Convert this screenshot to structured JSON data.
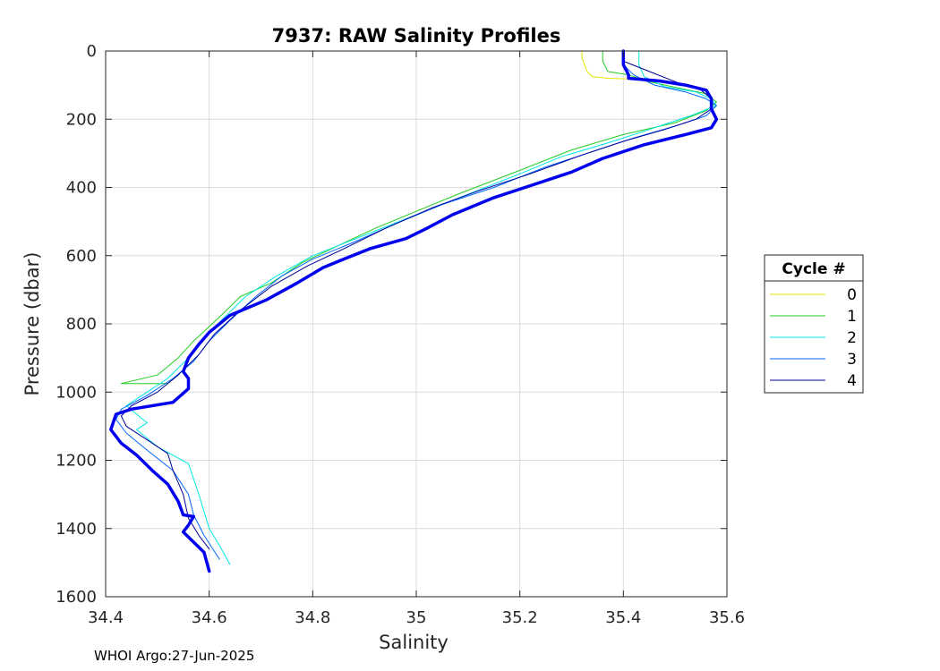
{
  "chart_data": {
    "type": "line",
    "title": "7937: RAW Salinity Profiles",
    "xlabel": "Salinity",
    "ylabel": "Pressure (dbar)",
    "xlim": [
      34.4,
      35.6
    ],
    "ylim": [
      0,
      1600
    ],
    "y_reversed": true,
    "grid": true,
    "xticks": [
      "34.4",
      "34.6",
      "34.8",
      "35",
      "35.2",
      "35.4",
      "35.6"
    ],
    "yticks": [
      "0",
      "200",
      "400",
      "600",
      "800",
      "1000",
      "1200",
      "1400",
      "1600"
    ],
    "legend": {
      "title": "Cycle #",
      "position": "outside-right"
    },
    "series": [
      {
        "name": "0",
        "color": "#e6e600",
        "width": 1,
        "points": [
          [
            35.32,
            0
          ],
          [
            35.32,
            20
          ],
          [
            35.33,
            60
          ],
          [
            35.34,
            75
          ],
          [
            35.37,
            80
          ],
          [
            35.41,
            82
          ]
        ]
      },
      {
        "name": "1",
        "color": "#22cc22",
        "width": 1,
        "points": [
          [
            35.36,
            0
          ],
          [
            35.36,
            30
          ],
          [
            35.37,
            60
          ],
          [
            35.41,
            70
          ],
          [
            35.45,
            90
          ],
          [
            35.51,
            110
          ],
          [
            35.56,
            125
          ],
          [
            35.58,
            150
          ],
          [
            35.56,
            175
          ],
          [
            35.5,
            210
          ],
          [
            35.4,
            245
          ],
          [
            35.3,
            290
          ],
          [
            35.2,
            350
          ],
          [
            35.08,
            420
          ],
          [
            35.0,
            470
          ],
          [
            34.92,
            520
          ],
          [
            34.85,
            570
          ],
          [
            34.78,
            620
          ],
          [
            34.72,
            680
          ],
          [
            34.66,
            720
          ],
          [
            34.62,
            780
          ],
          [
            34.57,
            850
          ],
          [
            34.54,
            900
          ],
          [
            34.5,
            950
          ],
          [
            34.43,
            975
          ],
          [
            34.52,
            975
          ],
          [
            34.54,
            950
          ]
        ]
      },
      {
        "name": "2",
        "color": "#00e6e6",
        "width": 1,
        "points": [
          [
            35.43,
            0
          ],
          [
            35.43,
            40
          ],
          [
            35.44,
            75
          ],
          [
            35.48,
            105
          ],
          [
            35.54,
            120
          ],
          [
            35.57,
            140
          ],
          [
            35.58,
            160
          ],
          [
            35.53,
            190
          ],
          [
            35.46,
            225
          ],
          [
            35.38,
            265
          ],
          [
            35.28,
            310
          ],
          [
            35.2,
            360
          ],
          [
            35.1,
            420
          ],
          [
            35.0,
            480
          ],
          [
            34.9,
            540
          ],
          [
            34.8,
            600
          ],
          [
            34.73,
            660
          ],
          [
            34.67,
            720
          ],
          [
            34.63,
            780
          ],
          [
            34.59,
            840
          ],
          [
            34.56,
            900
          ],
          [
            34.52,
            960
          ],
          [
            34.47,
            1010
          ],
          [
            34.44,
            1040
          ],
          [
            34.46,
            1065
          ],
          [
            34.48,
            1090
          ],
          [
            34.46,
            1110
          ],
          [
            34.5,
            1160
          ],
          [
            34.56,
            1210
          ],
          [
            34.58,
            1300
          ],
          [
            34.6,
            1400
          ],
          [
            34.62,
            1450
          ],
          [
            34.64,
            1505
          ]
        ]
      },
      {
        "name": "3",
        "color": "#0066ff",
        "width": 1,
        "points": [
          [
            35.4,
            0
          ],
          [
            35.4,
            40
          ],
          [
            35.42,
            70
          ],
          [
            35.46,
            100
          ],
          [
            35.52,
            120
          ],
          [
            35.56,
            140
          ],
          [
            35.58,
            160
          ],
          [
            35.56,
            190
          ],
          [
            35.5,
            220
          ],
          [
            35.42,
            255
          ],
          [
            35.34,
            295
          ],
          [
            35.25,
            340
          ],
          [
            35.15,
            400
          ],
          [
            35.05,
            450
          ],
          [
            34.97,
            500
          ],
          [
            34.88,
            560
          ],
          [
            34.8,
            610
          ],
          [
            34.74,
            660
          ],
          [
            34.69,
            720
          ],
          [
            34.64,
            790
          ],
          [
            34.6,
            850
          ],
          [
            34.57,
            910
          ],
          [
            34.53,
            960
          ],
          [
            34.48,
            1010
          ],
          [
            34.43,
            1050
          ],
          [
            34.42,
            1080
          ],
          [
            34.44,
            1120
          ],
          [
            34.48,
            1170
          ],
          [
            34.53,
            1230
          ],
          [
            34.56,
            1300
          ],
          [
            34.57,
            1360
          ],
          [
            34.59,
            1420
          ],
          [
            34.62,
            1490
          ]
        ]
      },
      {
        "name": "4",
        "color": "#000099",
        "width": 1,
        "points": [
          [
            35.4,
            0
          ],
          [
            35.4,
            30
          ],
          [
            35.45,
            60
          ],
          [
            35.5,
            90
          ],
          [
            35.55,
            115
          ],
          [
            35.57,
            140
          ],
          [
            35.57,
            170
          ],
          [
            35.54,
            200
          ],
          [
            35.48,
            230
          ],
          [
            35.4,
            265
          ],
          [
            35.32,
            305
          ],
          [
            35.22,
            360
          ],
          [
            35.12,
            410
          ],
          [
            35.03,
            460
          ],
          [
            34.94,
            520
          ],
          [
            34.86,
            580
          ],
          [
            34.79,
            630
          ],
          [
            34.72,
            690
          ],
          [
            34.66,
            760
          ],
          [
            34.61,
            830
          ],
          [
            34.58,
            890
          ],
          [
            34.54,
            950
          ],
          [
            34.5,
            1000
          ],
          [
            34.45,
            1040
          ],
          [
            34.43,
            1070
          ],
          [
            34.44,
            1100
          ],
          [
            34.48,
            1140
          ],
          [
            34.52,
            1180
          ],
          [
            34.53,
            1230
          ],
          [
            34.55,
            1300
          ],
          [
            34.56,
            1370
          ],
          [
            34.58,
            1420
          ],
          [
            34.6,
            1460
          ]
        ]
      },
      {
        "name": "",
        "color": "#0000ee",
        "width": 3.5,
        "legend": false,
        "points": [
          [
            35.4,
            0
          ],
          [
            35.4,
            40
          ],
          [
            35.41,
            70
          ],
          [
            35.41,
            80
          ],
          [
            35.47,
            88
          ],
          [
            35.52,
            100
          ],
          [
            35.56,
            115
          ],
          [
            35.57,
            140
          ],
          [
            35.57,
            170
          ],
          [
            35.58,
            200
          ],
          [
            35.57,
            225
          ],
          [
            35.52,
            245
          ],
          [
            35.44,
            275
          ],
          [
            35.36,
            315
          ],
          [
            35.3,
            355
          ],
          [
            35.22,
            395
          ],
          [
            35.15,
            430
          ],
          [
            35.07,
            480
          ],
          [
            35.02,
            520
          ],
          [
            34.98,
            550
          ],
          [
            34.91,
            580
          ],
          [
            34.86,
            610
          ],
          [
            34.82,
            635
          ],
          [
            34.77,
            680
          ],
          [
            34.71,
            730
          ],
          [
            34.64,
            775
          ],
          [
            34.6,
            825
          ],
          [
            34.58,
            860
          ],
          [
            34.56,
            900
          ],
          [
            34.55,
            940
          ],
          [
            34.56,
            960
          ],
          [
            34.56,
            990
          ],
          [
            34.53,
            1030
          ],
          [
            34.45,
            1050
          ],
          [
            34.42,
            1065
          ],
          [
            34.41,
            1110
          ],
          [
            34.43,
            1150
          ],
          [
            34.46,
            1185
          ],
          [
            34.49,
            1230
          ],
          [
            34.52,
            1270
          ],
          [
            34.54,
            1320
          ],
          [
            34.55,
            1360
          ],
          [
            34.57,
            1365
          ],
          [
            34.56,
            1390
          ],
          [
            34.55,
            1410
          ],
          [
            34.57,
            1440
          ],
          [
            34.59,
            1470
          ],
          [
            34.6,
            1525
          ]
        ]
      }
    ]
  },
  "footer": "WHOI Argo:27-Jun-2025"
}
